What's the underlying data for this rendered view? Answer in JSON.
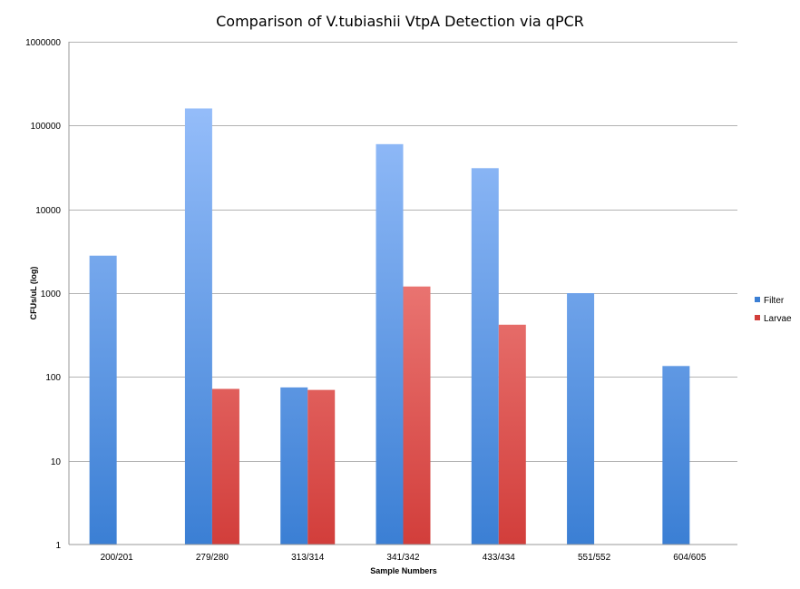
{
  "chart_data": {
    "type": "bar",
    "title": "Comparison of V.tubiashii VtpA Detection via qPCR",
    "xlabel": "Sample Numbers",
    "ylabel": "CFUs/uL (log)",
    "yscale": "log",
    "ylim": [
      1,
      1000000
    ],
    "yticks": [
      {
        "value": 1,
        "label": "1"
      },
      {
        "value": 10,
        "label": "10"
      },
      {
        "value": 100,
        "label": "100"
      },
      {
        "value": 1000,
        "label": "1000"
      },
      {
        "value": 10000,
        "label": "10000"
      },
      {
        "value": 100000,
        "label": "100000"
      },
      {
        "value": 1000000,
        "label": "1000000"
      }
    ],
    "grid": true,
    "legend_position": "right",
    "categories": [
      "200/201",
      "279/280",
      "313/314",
      "341/342",
      "433/434",
      "551/552",
      "604/605"
    ],
    "series": [
      {
        "name": "Filter",
        "color_top": "#a2c6ff",
        "color_bottom": "#3b7fd4",
        "values": [
          2800,
          160000,
          75,
          60000,
          31000,
          1000,
          135
        ]
      },
      {
        "name": "Larvae",
        "color_top": "#ffa6a3",
        "color_bottom": "#d23e3b",
        "values": [
          null,
          72,
          70,
          1200,
          420,
          null,
          null
        ]
      }
    ]
  }
}
